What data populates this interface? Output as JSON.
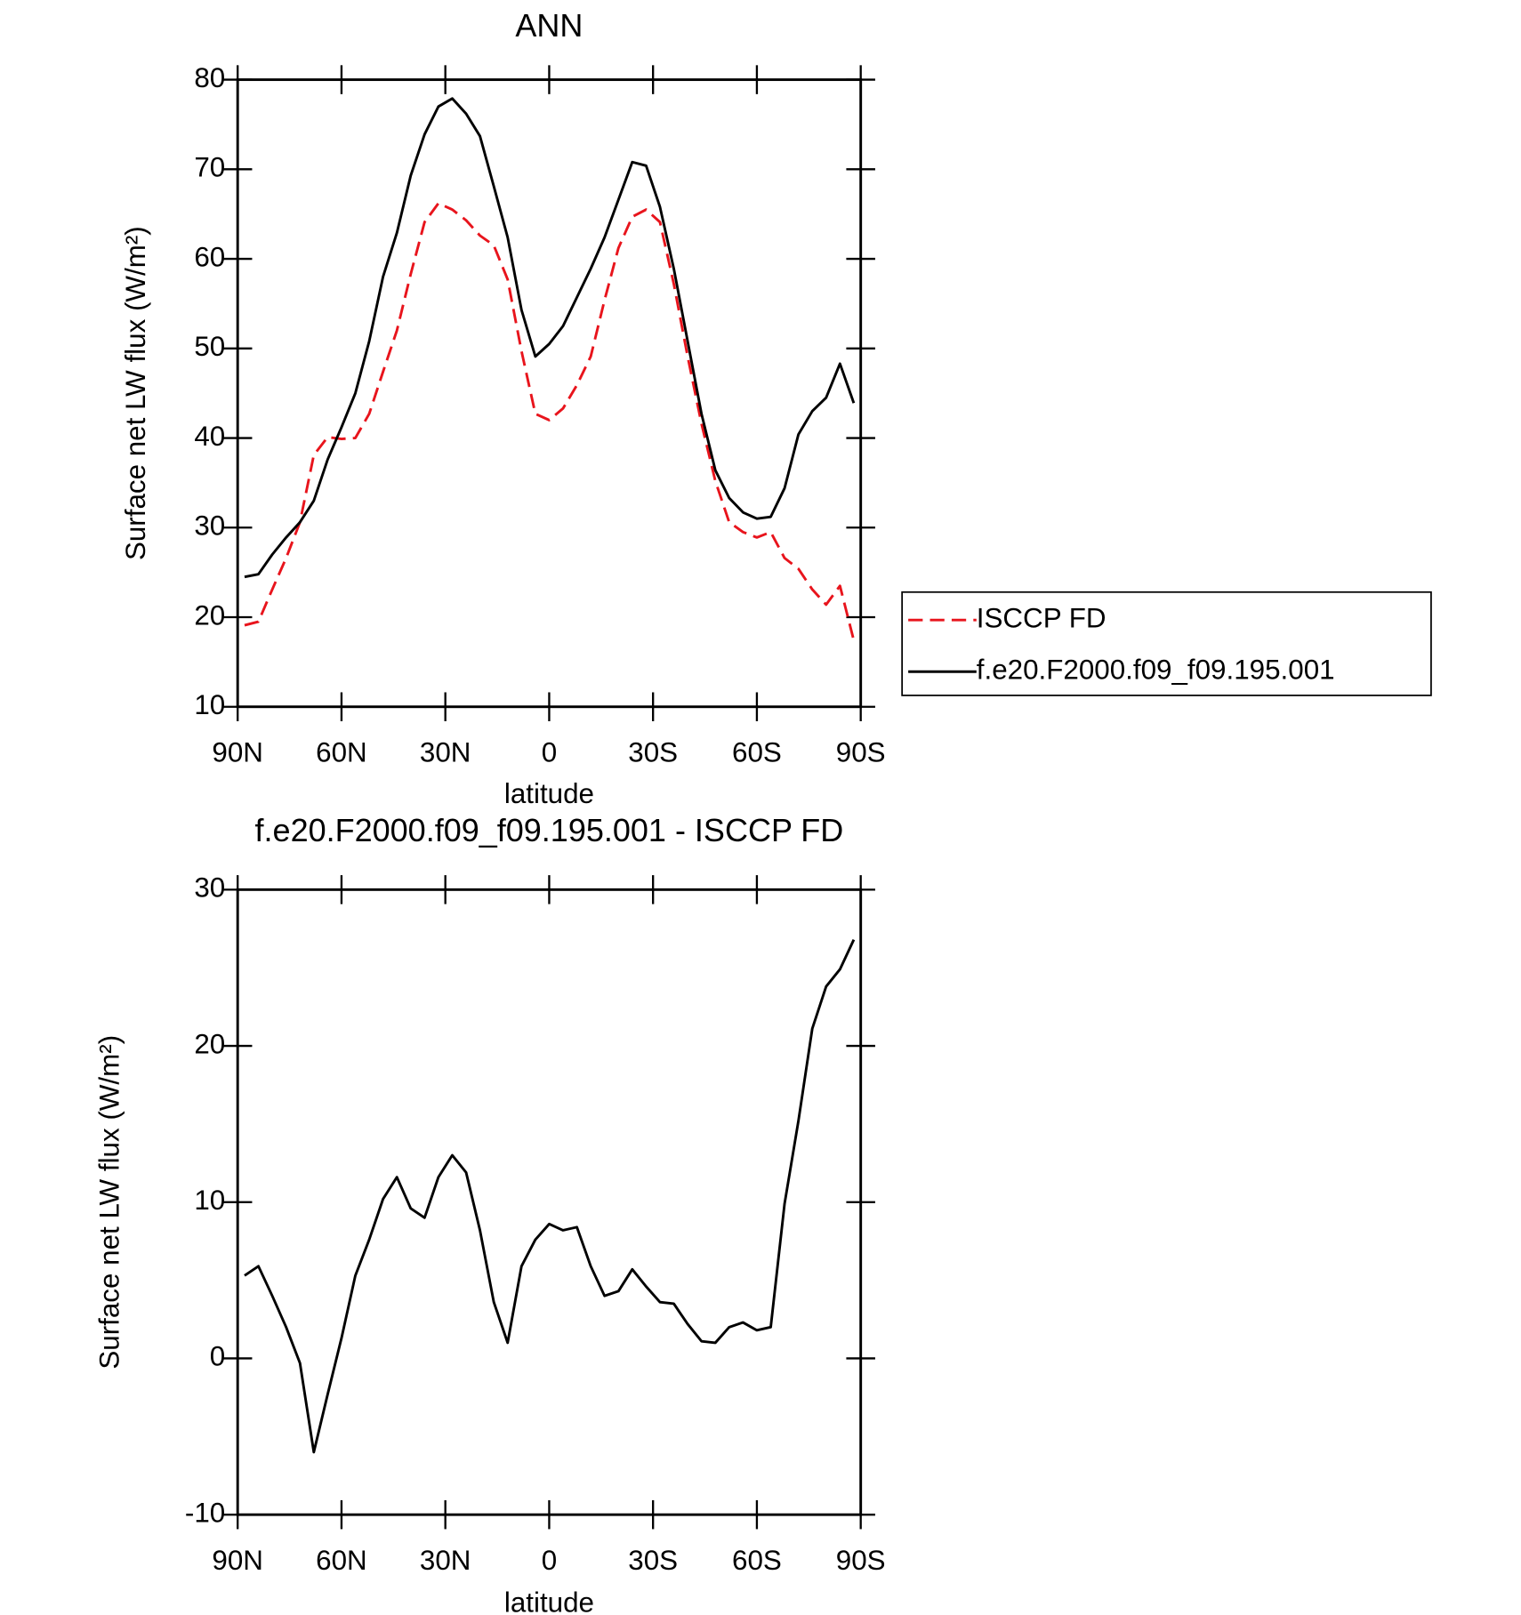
{
  "chart_data": [
    {
      "type": "line",
      "title": "ANN",
      "xlabel": "latitude",
      "ylabel": "Surface net LW flux (W/m²)",
      "x": [
        88,
        84,
        80,
        76,
        72,
        68,
        64,
        60,
        56,
        52,
        48,
        44,
        40,
        36,
        32,
        28,
        24,
        20,
        16,
        12,
        8,
        4,
        0,
        -4,
        -8,
        -12,
        -16,
        -20,
        -24,
        -28,
        -32,
        -36,
        -40,
        -44,
        -48,
        -52,
        -56,
        -60,
        -64,
        -68,
        -72,
        -76,
        -80,
        -84,
        -88
      ],
      "series": [
        {
          "name": "ISCCP FD",
          "color": "#e8141c",
          "dashed": true,
          "values": [
            19.1,
            19.5,
            23.1,
            26.6,
            30.6,
            38.1,
            40.1,
            39.9,
            40.0,
            42.7,
            47.4,
            52.0,
            58.3,
            64.1,
            66.2,
            65.5,
            64.3,
            62.6,
            61.5,
            57.7,
            49.7,
            42.7,
            42.0,
            43.3,
            45.9,
            49.1,
            55.4,
            61.2,
            64.7,
            65.5,
            64.1,
            57.2,
            49.1,
            41.6,
            35.2,
            30.6,
            29.5,
            28.9,
            29.5,
            26.6,
            25.4,
            23.1,
            21.4,
            23.5,
            17.4
          ]
        },
        {
          "name": "f.e20.F2000.f09_f09.195.001",
          "color": "#000000",
          "dashed": false,
          "values": [
            24.5,
            24.8,
            27.0,
            28.9,
            30.6,
            33.0,
            37.6,
            41.2,
            45.0,
            50.8,
            58.0,
            62.9,
            69.3,
            73.9,
            77.0,
            77.9,
            76.2,
            73.7,
            68.1,
            62.4,
            54.3,
            49.1,
            50.5,
            52.5,
            55.7,
            58.9,
            62.4,
            66.6,
            70.8,
            70.4,
            65.8,
            58.9,
            50.8,
            42.7,
            36.4,
            33.3,
            31.7,
            31.0,
            31.2,
            34.4,
            40.4,
            43.0,
            44.5,
            48.3,
            43.9
          ]
        }
      ],
      "xlim": [
        90,
        -90
      ],
      "xticks": [
        {
          "value": 90,
          "label": "90N"
        },
        {
          "value": 60,
          "label": "60N"
        },
        {
          "value": 30,
          "label": "30N"
        },
        0,
        {
          "value": -30,
          "label": "30S"
        },
        {
          "value": -60,
          "label": "60S"
        },
        {
          "value": -90,
          "label": "90S"
        }
      ],
      "ylim": [
        10,
        80
      ],
      "yticks": [
        10,
        20,
        30,
        40,
        50,
        60,
        70,
        80
      ],
      "legend": "right"
    },
    {
      "type": "line",
      "title": "f.e20.F2000.f09_f09.195.001 - ISCCP FD",
      "xlabel": "latitude",
      "ylabel": "Surface net LW flux (W/m²)",
      "x": [
        88,
        84,
        80,
        76,
        72,
        68,
        64,
        60,
        56,
        52,
        48,
        44,
        40,
        36,
        32,
        28,
        24,
        20,
        16,
        12,
        8,
        4,
        0,
        -4,
        -8,
        -12,
        -16,
        -20,
        -24,
        -28,
        -32,
        -36,
        -40,
        -44,
        -48,
        -52,
        -56,
        -60,
        -64,
        -68,
        -72,
        -76,
        -80,
        -84,
        -88
      ],
      "values": [
        5.3,
        5.9,
        4.0,
        2.0,
        -0.3,
        -6.0,
        -2.3,
        1.3,
        5.3,
        7.6,
        10.2,
        11.6,
        9.6,
        9.0,
        11.6,
        13.0,
        11.9,
        8.2,
        3.6,
        1.0,
        5.9,
        7.6,
        8.6,
        8.2,
        8.4,
        5.9,
        4.0,
        4.3,
        5.7,
        4.6,
        3.6,
        3.5,
        2.2,
        1.1,
        1.0,
        2.0,
        2.3,
        1.8,
        2.0,
        9.9,
        15.2,
        21.1,
        23.8,
        24.9,
        26.8
      ],
      "color": "#000000",
      "xlim": [
        90,
        -90
      ],
      "xticks": [
        {
          "value": 90,
          "label": "90N"
        },
        {
          "value": 60,
          "label": "60N"
        },
        {
          "value": 30,
          "label": "30N"
        },
        0,
        {
          "value": -30,
          "label": "30S"
        },
        {
          "value": -60,
          "label": "60S"
        },
        {
          "value": -90,
          "label": "90S"
        }
      ],
      "ylim": [
        -10,
        30
      ],
      "yticks": [
        -10,
        0,
        10,
        20,
        30
      ]
    }
  ]
}
